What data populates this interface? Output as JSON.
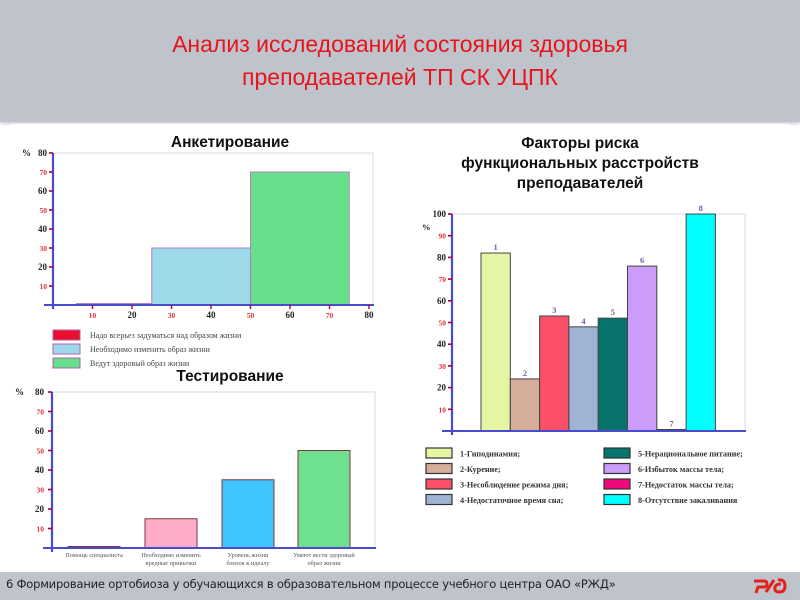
{
  "header": {
    "title_line1": "Анализ исследований состояния здоровья",
    "title_line2": "преподавателей ТП СК УЦПК",
    "title_color": "#E8141C",
    "background": "#BEC3CC"
  },
  "footer": {
    "text": "6 Формирование ортобиоза у обучающихся в образовательном процессе учебного центра ОАО «РЖД»",
    "logo": "rzd-logo",
    "logo_text": "РЖД"
  },
  "chart_data": [
    {
      "id": "survey",
      "type": "bar",
      "title": "Анкетирование",
      "ylabel": "%",
      "ylim": [
        0,
        80
      ],
      "yticks": [
        10,
        20,
        30,
        40,
        50,
        60,
        70,
        80
      ],
      "xticks": [
        10,
        20,
        30,
        40,
        50,
        60,
        70,
        80
      ],
      "xlim": [
        0,
        80
      ],
      "bars": [
        {
          "label": "Надо всерьез задуматься над образом жизни",
          "x_start": 6,
          "x_end": 25,
          "value": 0.5,
          "color": "#E8102C"
        },
        {
          "label": "Необходимо изменить образ  жизни",
          "x_start": 25,
          "x_end": 50,
          "value": 30,
          "color": "#9ED9EA"
        },
        {
          "label": "Ведут здоровый образ жизни",
          "x_start": 50,
          "x_end": 75,
          "value": 70,
          "color": "#66E08A"
        }
      ],
      "legend": [
        {
          "label": "Надо всерьез задуматься над образом жизни",
          "color": "#E8102C"
        },
        {
          "label": "Необходимо изменить образ  жизни",
          "color": "#9ED9EA"
        },
        {
          "label": "Ведут здоровый образ жизни",
          "color": "#66E08A"
        }
      ]
    },
    {
      "id": "testing",
      "type": "bar",
      "title": "Тестирование",
      "ylabel": "%",
      "ylim": [
        0,
        80
      ],
      "yticks": [
        10,
        20,
        30,
        40,
        50,
        60,
        70,
        80
      ],
      "categories": [
        "Помощь специалиста",
        "Необходимо изменить вредные привычки",
        "Уровень жизни близок к идеалу",
        "Умеют вести здоровый образ жизни"
      ],
      "category_lines": [
        [
          "Помощь специалиста"
        ],
        [
          "Необходимо изменить",
          "вредные привычки"
        ],
        [
          "Уровень жизни",
          "близок к идеалу"
        ],
        [
          "Умеют вести здоровый",
          "образ жизни"
        ]
      ],
      "values": [
        0.5,
        15,
        35,
        50
      ],
      "colors": [
        "#E8102C",
        "#FFACC8",
        "#3EC5FB",
        "#6EE08E"
      ]
    },
    {
      "id": "risk-factors",
      "type": "bar",
      "title": "Факторы риска функциональных расстройств преподавателей",
      "title_lines": [
        "Факторы риска",
        "функциональных расстройств",
        "преподавателей"
      ],
      "ylabel": "%",
      "ylim": [
        0,
        100
      ],
      "yticks": [
        10,
        20,
        30,
        40,
        50,
        60,
        70,
        80,
        90,
        100
      ],
      "categories": [
        "1",
        "2",
        "3",
        "4",
        "5",
        "6",
        "7",
        "8"
      ],
      "values": [
        82,
        24,
        53,
        48,
        52,
        76,
        0.5,
        100
      ],
      "colors": [
        "#E4F5A4",
        "#D4AE9A",
        "#FC5068",
        "#9FB4D4",
        "#06736C",
        "#CC9CFA",
        "#F0087C",
        "#00FFFF"
      ],
      "legend": [
        {
          "label": "1-Гиподинамия;",
          "color": "#E4F5A4"
        },
        {
          "label": "2-Курение;",
          "color": "#D4AE9A"
        },
        {
          "label": "3-Несоблюдение режима дня;",
          "color": "#FC5068"
        },
        {
          "label": "4-Недостаточное время сна;",
          "color": "#9FB4D4"
        },
        {
          "label": "5-Нерациональное питание;",
          "color": "#06736C"
        },
        {
          "label": "6-Избыток массы тела;",
          "color": "#CC9CFA"
        },
        {
          "label": "7-Недостаток массы тела;",
          "color": "#F0087C"
        },
        {
          "label": "8-Отсутствие закаливания",
          "color": "#00FFFF"
        }
      ]
    }
  ]
}
